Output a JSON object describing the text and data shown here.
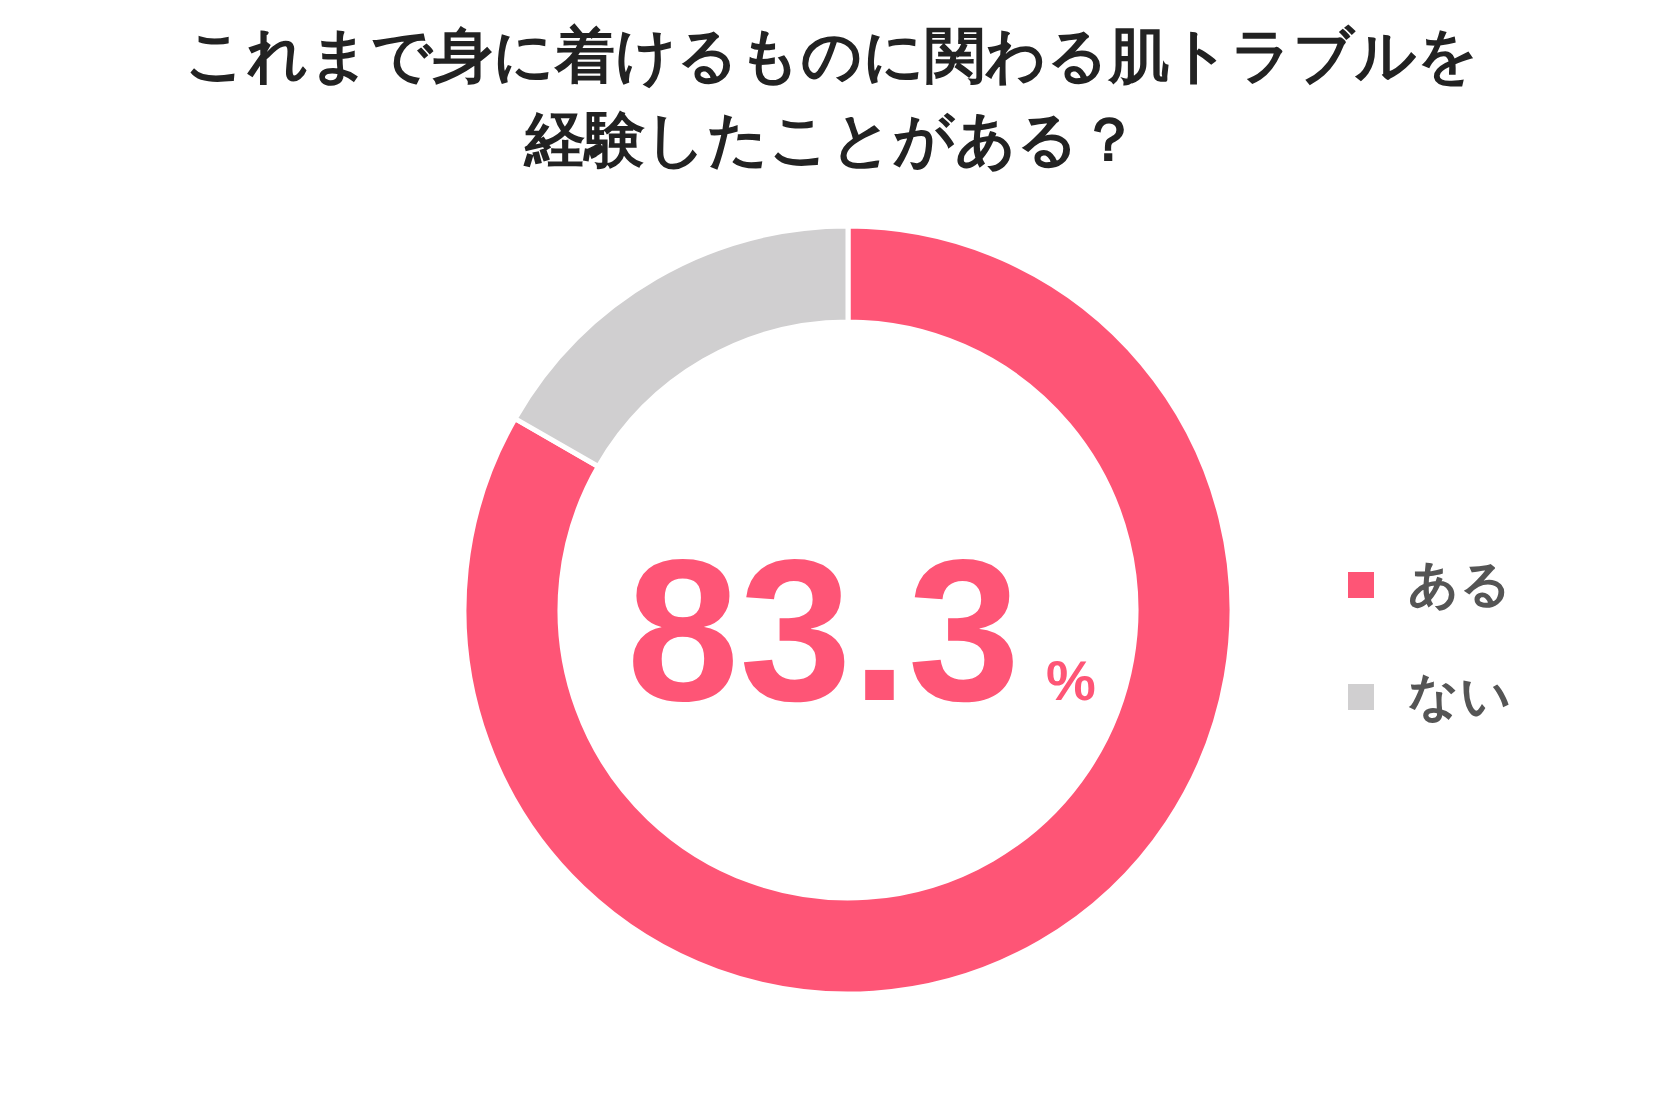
{
  "chart_data": {
    "type": "donut",
    "title": "これまで身に着けるものに関わる肌トラブルを経験したことがある？",
    "categories": [
      "ある",
      "ない"
    ],
    "values": [
      83.3,
      16.7
    ],
    "colors": [
      "#fe5576",
      "#d0cfd0"
    ],
    "value_labels": [
      "83.3%",
      null
    ],
    "legend": "right"
  }
}
